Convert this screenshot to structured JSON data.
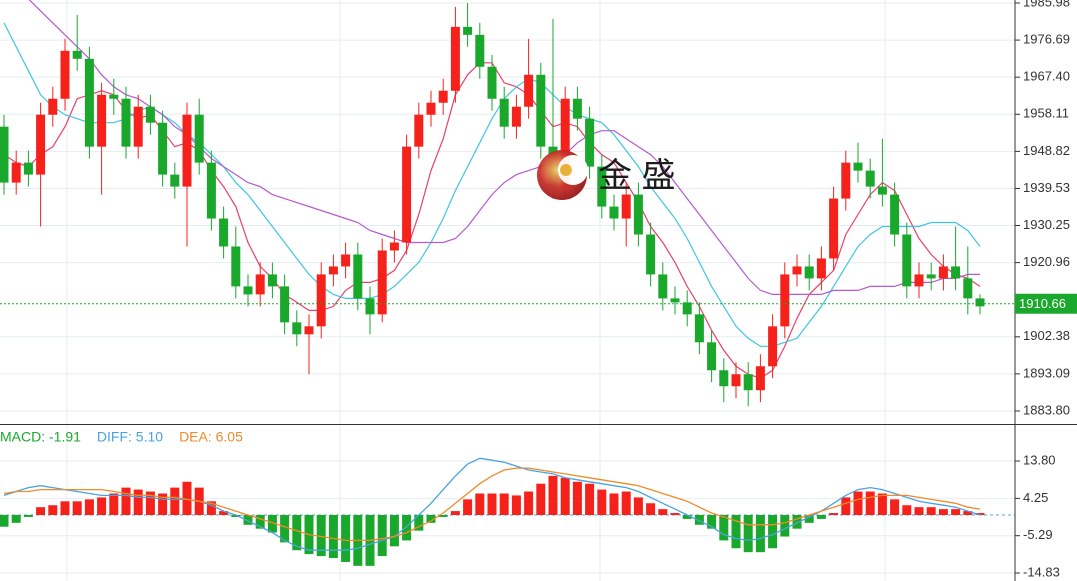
{
  "watermark": "金 盛",
  "chart_data": [
    {
      "type": "candlestick",
      "up_color": "#f5221b",
      "down_color": "#1aa82c",
      "grid": true,
      "ylim": [
        1880.54,
        1986.73
      ],
      "yticks": [
        1985.98,
        1976.69,
        {
          "value": 1967.4,
          "label": "1967.40"
        },
        1958.11,
        1948.82,
        1939.53,
        1930.25,
        1920.96,
        1902.38,
        1893.09,
        {
          "value": 1883.8,
          "label": "1883.80"
        }
      ],
      "last_price": 1910.66,
      "last_price_color": "#1aa82c",
      "open": [
        1955,
        1941,
        1946,
        1943,
        1958,
        1962,
        1974,
        1972,
        1950,
        1963,
        1962,
        1950,
        1960,
        1956,
        1943,
        1940,
        1958,
        1946,
        1932,
        1925,
        1915,
        1913,
        1918,
        1915,
        1906,
        1903,
        1905,
        1918,
        1920,
        1923,
        1912,
        1908,
        1924,
        1926,
        1950,
        1958,
        1961,
        1964,
        1980,
        1978,
        1970,
        1962,
        1955,
        1960,
        1968,
        1950,
        1940,
        1962,
        1957,
        1945,
        1935,
        1932,
        1938,
        1928,
        1918,
        1912,
        1911,
        1908,
        1901,
        1894,
        1890,
        1893,
        1889,
        1895,
        1905,
        1918,
        1920,
        1917,
        1922,
        1937,
        1946,
        1944,
        1940,
        1938,
        1928,
        1915,
        1918,
        1917,
        1920,
        1917,
        1912
      ],
      "high": [
        1958,
        1949,
        1949,
        1961,
        1965,
        1977,
        1983,
        1975,
        1966,
        1967,
        1965,
        1963,
        1963,
        1959,
        1946,
        1961,
        1962,
        1949,
        1935,
        1930,
        1918,
        1921,
        1921,
        1918,
        1909,
        1908,
        1921,
        1923,
        1926,
        1926,
        1915,
        1927,
        1929,
        1953,
        1961,
        1964,
        1967,
        1985,
        1986,
        1981,
        1973,
        1965,
        1963,
        1977,
        1971,
        1982,
        1965,
        1965,
        1960,
        1948,
        1938,
        1941,
        1941,
        1931,
        1921,
        1915,
        1914,
        1911,
        1904,
        1897,
        1896,
        1896,
        1898,
        1908,
        1921,
        1923,
        1923,
        1925,
        1940,
        1949,
        1951,
        1947,
        1952,
        1941,
        1931,
        1921,
        1921,
        1923,
        1930,
        1925,
        1913
      ],
      "low": [
        1938,
        1938,
        1940,
        1930,
        1955,
        1959,
        1969,
        1947,
        1938,
        1958,
        1947,
        1947,
        1953,
        1940,
        1937,
        1925,
        1943,
        1929,
        1922,
        1912,
        1910,
        1910,
        1912,
        1903,
        1900,
        1893,
        1902,
        1915,
        1917,
        1909,
        1903,
        1906,
        1921,
        1923,
        1947,
        1955,
        1958,
        1961,
        1975,
        1967,
        1959,
        1952,
        1952,
        1957,
        1947,
        1937,
        1937,
        1954,
        1942,
        1932,
        1929,
        1925,
        1925,
        1915,
        1909,
        1908,
        1905,
        1898,
        1891,
        1886,
        1887,
        1885,
        1886,
        1892,
        1902,
        1915,
        1914,
        1914,
        1919,
        1934,
        1941,
        1937,
        1935,
        1925,
        1912,
        1912,
        1914,
        1914,
        1914,
        1908,
        1908
      ],
      "close": [
        1941,
        1946,
        1943,
        1958,
        1962,
        1974,
        1972,
        1950,
        1963,
        1962,
        1950,
        1960,
        1956,
        1943,
        1940,
        1958,
        1946,
        1932,
        1925,
        1915,
        1913,
        1918,
        1915,
        1906,
        1903,
        1905,
        1918,
        1920,
        1923,
        1912,
        1908,
        1924,
        1926,
        1950,
        1958,
        1961,
        1964,
        1980,
        1978,
        1970,
        1962,
        1955,
        1960,
        1968,
        1950,
        1940,
        1962,
        1957,
        1945,
        1935,
        1932,
        1938,
        1928,
        1918,
        1912,
        1911,
        1908,
        1901,
        1894,
        1890,
        1893,
        1889,
        1895,
        1905,
        1918,
        1920,
        1917,
        1922,
        1937,
        1946,
        1944,
        1940,
        1938,
        1928,
        1915,
        1918,
        1917,
        1920,
        1917,
        1912,
        1910
      ],
      "ma_lines": [
        {
          "color": "#e8416a",
          "values": [
            1948,
            1946,
            1945,
            1948,
            1950,
            1955,
            1962,
            1963,
            1964,
            1963,
            1959,
            1957,
            1958,
            1954,
            1950,
            1951,
            1949,
            1944,
            1940,
            1935,
            1926,
            1920,
            1917,
            1913,
            1911,
            1909,
            1909,
            1910,
            1914,
            1916,
            1916,
            1917,
            1919,
            1924,
            1933,
            1944,
            1952,
            1963,
            1968,
            1971,
            1971,
            1966,
            1965,
            1963,
            1959,
            1955,
            1956,
            1955,
            1951,
            1948,
            1946,
            1941,
            1936,
            1930,
            1926,
            1921,
            1915,
            1910,
            1904,
            1899,
            1895,
            1893,
            1892,
            1894,
            1900,
            1907,
            1913,
            1916,
            1919,
            1928,
            1933,
            1938,
            1941,
            1939,
            1933,
            1927,
            1923,
            1920,
            1918,
            1917,
            1915
          ]
        },
        {
          "color": "#3ec6e0",
          "values": [
            1981,
            1975,
            1969,
            1963,
            1960,
            1958,
            1957,
            1956,
            1956,
            1956,
            1957,
            1959,
            1960,
            1958,
            1956,
            1953,
            1951,
            1948,
            1945,
            1941,
            1938,
            1934,
            1930,
            1926,
            1922,
            1918,
            1915,
            1913,
            1912,
            1912,
            1912,
            1913,
            1915,
            1918,
            1921,
            1926,
            1932,
            1939,
            1945,
            1951,
            1957,
            1962,
            1965,
            1967,
            1966,
            1963,
            1960,
            1958,
            1957,
            1956,
            1953,
            1949,
            1945,
            1940,
            1936,
            1932,
            1927,
            1921,
            1915,
            1910,
            1905,
            1902,
            1900,
            1900,
            1901,
            1902,
            1906,
            1910,
            1915,
            1920,
            1925,
            1928,
            1930,
            1930,
            1930,
            1930,
            1931,
            1931,
            1931,
            1929,
            1925
          ]
        },
        {
          "color": "#b45bd0",
          "values": [
            1993,
            1990,
            1987,
            1984,
            1981,
            1978,
            1975,
            1972,
            1968,
            1965,
            1963,
            1962,
            1960,
            1958,
            1955,
            1953,
            1950,
            1947,
            1945,
            1943,
            1941,
            1940,
            1938,
            1937,
            1936,
            1935,
            1934,
            1933,
            1932,
            1931,
            1929,
            1928,
            1927,
            1926,
            1926,
            1926,
            1926,
            1927,
            1930,
            1934,
            1938,
            1941,
            1943,
            1944,
            1945,
            1946,
            1948,
            1951,
            1953,
            1954,
            1954,
            1952,
            1950,
            1948,
            1945,
            1941,
            1937,
            1933,
            1929,
            1925,
            1921,
            1917,
            1914,
            1913,
            1913,
            1913,
            1913,
            1913,
            1914,
            1914,
            1914,
            1915,
            1915,
            1915,
            1916,
            1916,
            1916,
            1917,
            1917,
            1918,
            1918
          ]
        }
      ]
    },
    {
      "type": "macd",
      "up_color": "#f5221b",
      "down_color": "#1aa82c",
      "ylim": [
        -16.87,
        22.24
      ],
      "yticks": [
        {
          "value": 13.8,
          "label": "13.80"
        },
        4.25,
        -5.29,
        -14.83
      ],
      "legend": [
        {
          "text": "MACD: -1.91",
          "color": "#1aa82c"
        },
        {
          "text": "DIFF: 5.10",
          "color": "#4aa3e0"
        },
        {
          "text": "DEA: 6.05",
          "color": "#f08a2a"
        }
      ],
      "values": [
        -3,
        -2,
        -0.5,
        2,
        2.5,
        3.5,
        3.5,
        4,
        4.5,
        5.5,
        7,
        6.5,
        6,
        5.5,
        7,
        8.5,
        7,
        3.5,
        1,
        -0.5,
        -2.5,
        -3.5,
        -4.5,
        -7,
        -9,
        -10,
        -10.5,
        -11,
        -12,
        -13,
        -13,
        -10.5,
        -8,
        -6.5,
        -4,
        -2,
        -0.5,
        1,
        4,
        5.5,
        5.5,
        5.5,
        5,
        6,
        8,
        10,
        9.5,
        8.5,
        8,
        6.5,
        5.5,
        6,
        4.5,
        3,
        1.5,
        0.5,
        -1,
        -2.5,
        -3.5,
        -6.5,
        -8.5,
        -9.5,
        -9.5,
        -8.5,
        -5.5,
        -3.5,
        -2,
        -1,
        0.5,
        4.5,
        6,
        6,
        5.5,
        4,
        2.5,
        2,
        2,
        1.5,
        1.5,
        1,
        0.5
      ],
      "lines": [
        {
          "color": "#4aa3e0",
          "values": [
            5,
            6,
            7,
            7.5,
            7,
            6.5,
            6,
            5.5,
            5,
            5,
            5,
            4.5,
            4.5,
            4,
            4,
            4,
            3.5,
            2.5,
            1,
            0,
            -1.5,
            -3,
            -4.5,
            -6.5,
            -8,
            -9,
            -9,
            -9,
            -9,
            -8.5,
            -7.5,
            -6.5,
            -5.5,
            -3,
            0,
            3,
            6.5,
            10,
            13,
            14.5,
            14,
            13.5,
            12.5,
            11.5,
            11,
            10.5,
            9.5,
            9,
            8.5,
            8,
            7.5,
            7,
            6,
            4.5,
            3,
            1.5,
            0,
            -1.5,
            -3,
            -5,
            -6,
            -6.5,
            -6,
            -5,
            -3.5,
            -2,
            -0.5,
            1,
            3,
            5,
            6.5,
            7,
            6.5,
            5.5,
            4.5,
            3.5,
            3,
            2.5,
            2,
            1,
            0
          ]
        },
        {
          "color": "#f08a2a",
          "values": [
            5.5,
            6,
            6,
            6.5,
            6.5,
            6.5,
            6.5,
            6.5,
            6.5,
            6,
            5.5,
            5,
            5,
            4.5,
            4.5,
            4,
            3.5,
            3,
            2,
            1,
            0,
            -1,
            -2,
            -3,
            -4,
            -5,
            -5.5,
            -6,
            -6.5,
            -6.5,
            -6.5,
            -6,
            -5.5,
            -4.5,
            -3,
            -1.5,
            0.5,
            3,
            5.5,
            8,
            10,
            11.5,
            12,
            12,
            11.5,
            11,
            10.5,
            10,
            9.5,
            9,
            8.5,
            8,
            7.5,
            6.5,
            5.5,
            4.5,
            3.5,
            2,
            0.5,
            -0.5,
            -1.5,
            -2.5,
            -2.5,
            -2.5,
            -2,
            -1,
            0,
            1,
            2,
            3,
            4,
            4.5,
            5,
            5,
            5,
            4.5,
            4,
            3.5,
            3,
            2,
            1.5
          ]
        }
      ]
    }
  ]
}
